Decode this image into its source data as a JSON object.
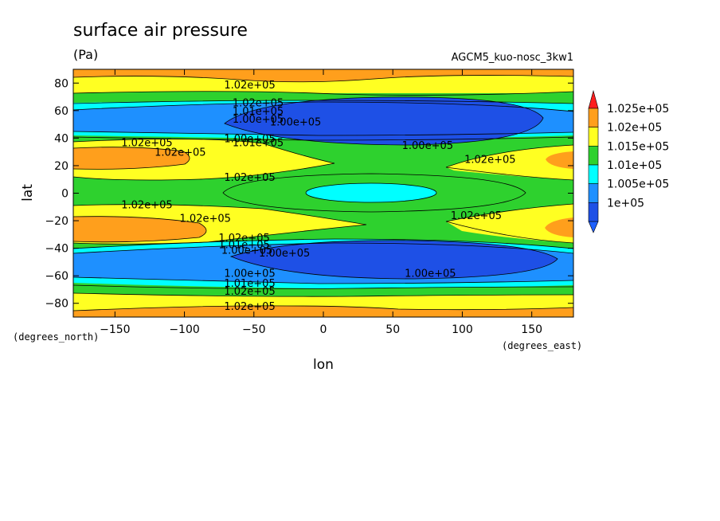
{
  "chart_data": {
    "type": "contour",
    "title": "surface air pressure",
    "units": "(Pa)",
    "run_label": "AGCM5_kuo-nosc_3kw1",
    "xlabel": "lon",
    "ylabel": "lat",
    "x_unit_label": "(degrees_east)",
    "y_unit_label": "(degrees_north)",
    "xlim": [
      -180,
      180
    ],
    "ylim": [
      -90,
      90
    ],
    "x_ticks": [
      -150,
      -100,
      -50,
      0,
      50,
      100,
      150
    ],
    "y_ticks": [
      -80,
      -60,
      -40,
      -20,
      0,
      20,
      40,
      60,
      80
    ],
    "levels": [
      100000,
      100500,
      101000,
      101500,
      102000,
      102500
    ],
    "colorbar": {
      "labels": [
        "1.025e+05",
        "1.02e+05",
        "1.015e+05",
        "1.01e+05",
        "1.005e+05",
        "1e+05"
      ],
      "colors": [
        "#ff9f1c",
        "#ffff22",
        "#2ed12e",
        "#00ffff",
        "#1e90ff",
        "#1e50e6"
      ],
      "top_arrow_color": "#ff1e1e",
      "bottom_arrow_color": "#1e60ff"
    },
    "contour_labels": [
      {
        "text": "1.02e+05",
        "lon": -53,
        "lat": 79
      },
      {
        "text": "1.02e+05",
        "lon": -47,
        "lat": 66
      },
      {
        "text": "1.01e+05",
        "lon": -47,
        "lat": 60
      },
      {
        "text": "1.00e+05",
        "lon": -47,
        "lat": 54
      },
      {
        "text": "1.00e+05",
        "lon": -20,
        "lat": 52
      },
      {
        "text": "1.00e+05",
        "lon": -53,
        "lat": 40
      },
      {
        "text": "1.01e+05",
        "lon": -47,
        "lat": 37
      },
      {
        "text": "1.02e+05",
        "lon": -127,
        "lat": 37
      },
      {
        "text": "1.02e+05",
        "lon": -103,
        "lat": 30
      },
      {
        "text": "1.00e+05",
        "lon": 75,
        "lat": 35
      },
      {
        "text": "1.02e+05",
        "lon": 120,
        "lat": 25
      },
      {
        "text": "1.02e+05",
        "lon": -53,
        "lat": 12
      },
      {
        "text": "1.02e+05",
        "lon": -127,
        "lat": -8
      },
      {
        "text": "1.02e+05",
        "lon": -85,
        "lat": -18
      },
      {
        "text": "1.02e+05",
        "lon": 110,
        "lat": -16
      },
      {
        "text": "1.02e+05",
        "lon": -57,
        "lat": -32
      },
      {
        "text": "1.01e+05",
        "lon": -57,
        "lat": -37
      },
      {
        "text": "1.00e+05",
        "lon": -55,
        "lat": -41
      },
      {
        "text": "1.00e+05",
        "lon": -28,
        "lat": -43
      },
      {
        "text": "1.00e+05",
        "lon": 77,
        "lat": -58
      },
      {
        "text": "1.00e+05",
        "lon": -53,
        "lat": -58
      },
      {
        "text": "1.01e+05",
        "lon": -53,
        "lat": -65
      },
      {
        "text": "1.02e+05",
        "lon": -53,
        "lat": -71
      },
      {
        "text": "1.02e+05",
        "lon": -53,
        "lat": -82
      }
    ]
  }
}
